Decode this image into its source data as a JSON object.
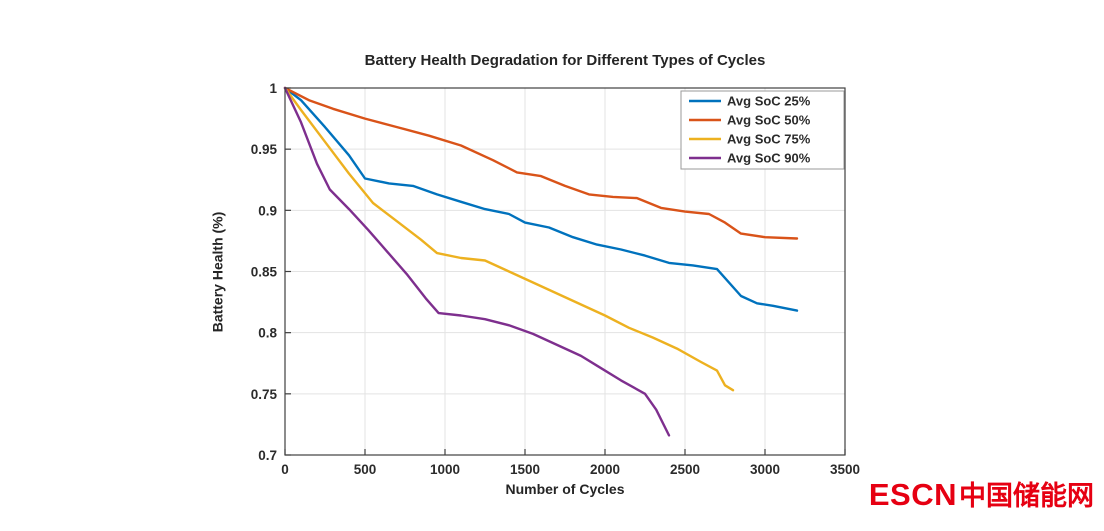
{
  "branding": {
    "logo_text": "ESCN",
    "logo_chinese": "中国储能网",
    "logo_color": "#e60012"
  },
  "chart_data": {
    "type": "line",
    "title": "Battery Health Degradation for Different Types of Cycles",
    "xlabel": "Number of Cycles",
    "ylabel": "Battery Health (%)",
    "xlim": [
      0,
      3500
    ],
    "ylim": [
      0.7,
      1.0
    ],
    "xticks": [
      0,
      500,
      1000,
      1500,
      2000,
      2500,
      3000,
      3500
    ],
    "xtick_labels": [
      "0",
      "500",
      "1000",
      "1500",
      "2000",
      "2500",
      "3000",
      "3500"
    ],
    "yticks": [
      0.7,
      0.75,
      0.8,
      0.85,
      0.9,
      0.95,
      1
    ],
    "ytick_labels": [
      "0.7",
      "0.75",
      "0.8",
      "0.85",
      "0.9",
      "0.95",
      "1"
    ],
    "grid": true,
    "legend_position": "top-right",
    "series": [
      {
        "name": "Avg SoC 25%",
        "color": "#0072BD",
        "points": [
          [
            0,
            1
          ],
          [
            100,
            0.99
          ],
          [
            250,
            0.968
          ],
          [
            400,
            0.945
          ],
          [
            500,
            0.926
          ],
          [
            650,
            0.922
          ],
          [
            800,
            0.92
          ],
          [
            950,
            0.913
          ],
          [
            1100,
            0.907
          ],
          [
            1250,
            0.901
          ],
          [
            1400,
            0.897
          ],
          [
            1500,
            0.89
          ],
          [
            1650,
            0.886
          ],
          [
            1800,
            0.878
          ],
          [
            1950,
            0.872
          ],
          [
            2100,
            0.868
          ],
          [
            2250,
            0.863
          ],
          [
            2400,
            0.857
          ],
          [
            2550,
            0.855
          ],
          [
            2700,
            0.852
          ],
          [
            2850,
            0.83
          ],
          [
            2950,
            0.824
          ],
          [
            3050,
            0.822
          ],
          [
            3200,
            0.818
          ]
        ]
      },
      {
        "name": "Avg SoC 50%",
        "color": "#D95319",
        "points": [
          [
            0,
            1
          ],
          [
            150,
            0.99
          ],
          [
            300,
            0.983
          ],
          [
            500,
            0.975
          ],
          [
            700,
            0.968
          ],
          [
            900,
            0.961
          ],
          [
            1100,
            0.953
          ],
          [
            1300,
            0.941
          ],
          [
            1450,
            0.931
          ],
          [
            1600,
            0.928
          ],
          [
            1750,
            0.92
          ],
          [
            1900,
            0.913
          ],
          [
            2050,
            0.911
          ],
          [
            2200,
            0.91
          ],
          [
            2350,
            0.902
          ],
          [
            2500,
            0.899
          ],
          [
            2650,
            0.897
          ],
          [
            2750,
            0.89
          ],
          [
            2850,
            0.881
          ],
          [
            3000,
            0.878
          ],
          [
            3200,
            0.877
          ]
        ]
      },
      {
        "name": "Avg SoC 75%",
        "color": "#EDB120",
        "points": [
          [
            0,
            1
          ],
          [
            100,
            0.982
          ],
          [
            250,
            0.956
          ],
          [
            400,
            0.93
          ],
          [
            550,
            0.906
          ],
          [
            700,
            0.891
          ],
          [
            850,
            0.876
          ],
          [
            950,
            0.865
          ],
          [
            1100,
            0.861
          ],
          [
            1250,
            0.859
          ],
          [
            1400,
            0.85
          ],
          [
            1550,
            0.841
          ],
          [
            1700,
            0.832
          ],
          [
            1850,
            0.823
          ],
          [
            2000,
            0.814
          ],
          [
            2150,
            0.804
          ],
          [
            2300,
            0.796
          ],
          [
            2450,
            0.787
          ],
          [
            2600,
            0.776
          ],
          [
            2700,
            0.769
          ],
          [
            2750,
            0.757
          ],
          [
            2800,
            0.753
          ]
        ]
      },
      {
        "name": "Avg SoC 90%",
        "color": "#7E2F8E",
        "points": [
          [
            0,
            1
          ],
          [
            100,
            0.972
          ],
          [
            200,
            0.938
          ],
          [
            280,
            0.917
          ],
          [
            400,
            0.901
          ],
          [
            520,
            0.884
          ],
          [
            640,
            0.866
          ],
          [
            760,
            0.848
          ],
          [
            880,
            0.828
          ],
          [
            960,
            0.816
          ],
          [
            1100,
            0.814
          ],
          [
            1250,
            0.811
          ],
          [
            1400,
            0.806
          ],
          [
            1550,
            0.799
          ],
          [
            1700,
            0.79
          ],
          [
            1850,
            0.781
          ],
          [
            1950,
            0.773
          ],
          [
            2100,
            0.761
          ],
          [
            2250,
            0.75
          ],
          [
            2320,
            0.737
          ],
          [
            2400,
            0.716
          ]
        ]
      }
    ]
  }
}
